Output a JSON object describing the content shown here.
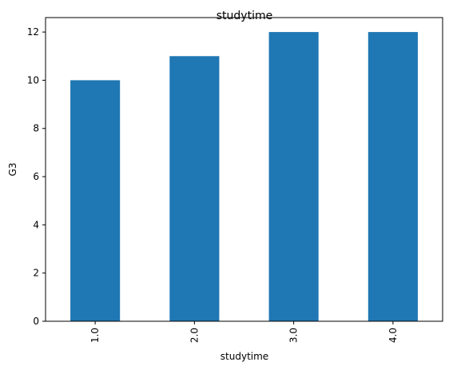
{
  "chart_data": {
    "type": "bar",
    "title": "studytime",
    "xlabel": "studytime",
    "ylabel": "G3",
    "categories": [
      "1.0",
      "2.0",
      "3.0",
      "4.0"
    ],
    "values": [
      10,
      11,
      12,
      12
    ],
    "ylim": [
      0,
      12.6
    ],
    "yticks": [
      "0",
      "2",
      "4",
      "6",
      "8",
      "10",
      "12"
    ],
    "grid": false,
    "legend": "none",
    "bar_color": "#1f77b4"
  }
}
